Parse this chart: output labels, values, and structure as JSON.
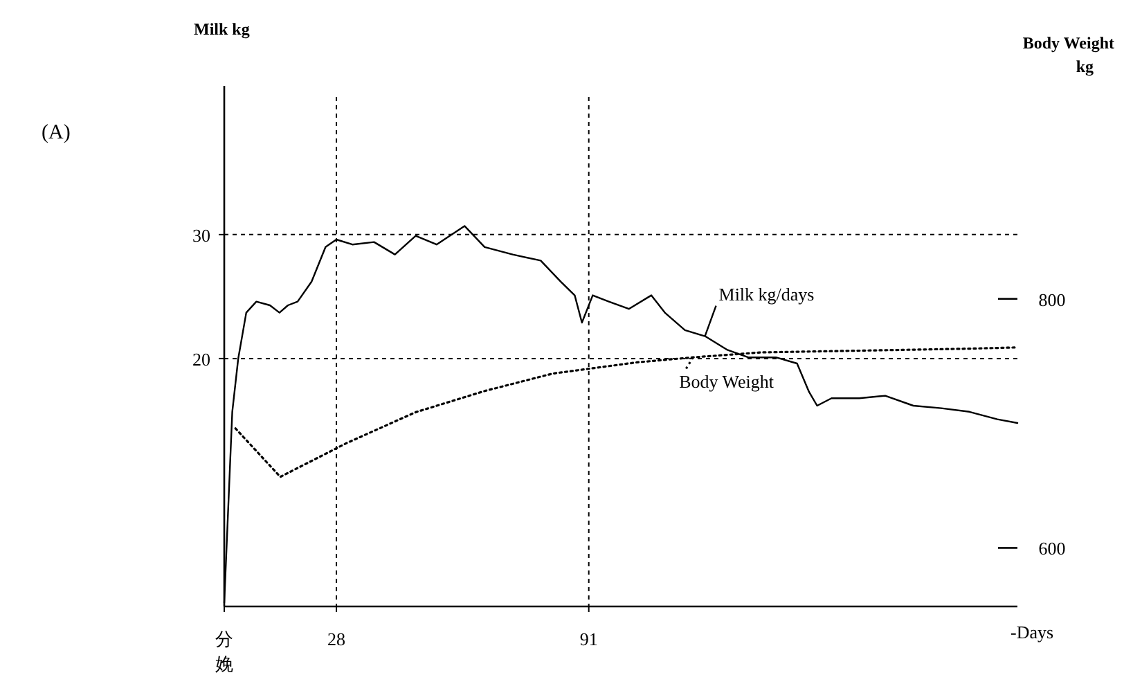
{
  "chart_data": {
    "type": "line",
    "title": "(A)",
    "ylabel": "Milk kg",
    "y2label": "Body Weight kg",
    "xlabel": "-Days",
    "xlim": [
      0,
      198
    ],
    "xticks": [
      {
        "value": 0,
        "label": "分娩"
      },
      28,
      91
    ],
    "ylim": [
      0,
      42
    ],
    "yticks": [
      20,
      30
    ],
    "y2lim": [
      553,
      971
    ],
    "y2ticks": [
      600,
      800
    ],
    "ref_lines": [
      {
        "axis": "x",
        "value": 28,
        "line_style": "dashed"
      },
      {
        "axis": "x",
        "value": 91,
        "line_style": "dashed"
      },
      {
        "axis": "y",
        "value": 20,
        "line_style": "dashed"
      },
      {
        "axis": "y",
        "value": 30,
        "line_style": "dashed"
      }
    ],
    "series": [
      {
        "name": "Milk kg/days",
        "color": "#000000",
        "line_style": "solid",
        "x": [
          0,
          2,
          3.5,
          5.5,
          8,
          11.4,
          13.8,
          15.9,
          18.3,
          21.8,
          25.3,
          28,
          32,
          37.4,
          42.6,
          47.8,
          53,
          60,
          65,
          72,
          79,
          84,
          87.5,
          89.3,
          92,
          96,
          101,
          106.6,
          110,
          115,
          120,
          125.6,
          130.8,
          137.7,
          143,
          146,
          148,
          151.6,
          158.5,
          165,
          172,
          179,
          186,
          193,
          198
        ],
        "values": [
          0.3,
          15.7,
          20,
          23.7,
          24.6,
          24.3,
          23.7,
          24.3,
          24.6,
          26.2,
          29,
          29.6,
          29.2,
          29.4,
          28.4,
          29.9,
          29.2,
          30.7,
          29,
          28.4,
          27.9,
          26.2,
          25.1,
          22.9,
          25.1,
          24.6,
          24,
          25.1,
          23.7,
          22.3,
          21.8,
          20.7,
          20.1,
          20.1,
          19.6,
          17.3,
          16.2,
          16.8,
          16.8,
          17,
          16.2,
          16,
          15.7,
          15.1,
          14.8
        ]
      },
      {
        "name": "Body Weight",
        "color": "#000000",
        "axis": "y2",
        "line_style": "dotted",
        "x": [
          2.8,
          14,
          30.4,
          47.8,
          65,
          82,
          103,
          117,
          134,
          151.6,
          169,
          186,
          198
        ],
        "values": [
          696,
          657,
          684,
          709,
          726,
          740,
          749,
          753,
          757,
          758,
          759,
          760,
          761
        ]
      }
    ]
  }
}
